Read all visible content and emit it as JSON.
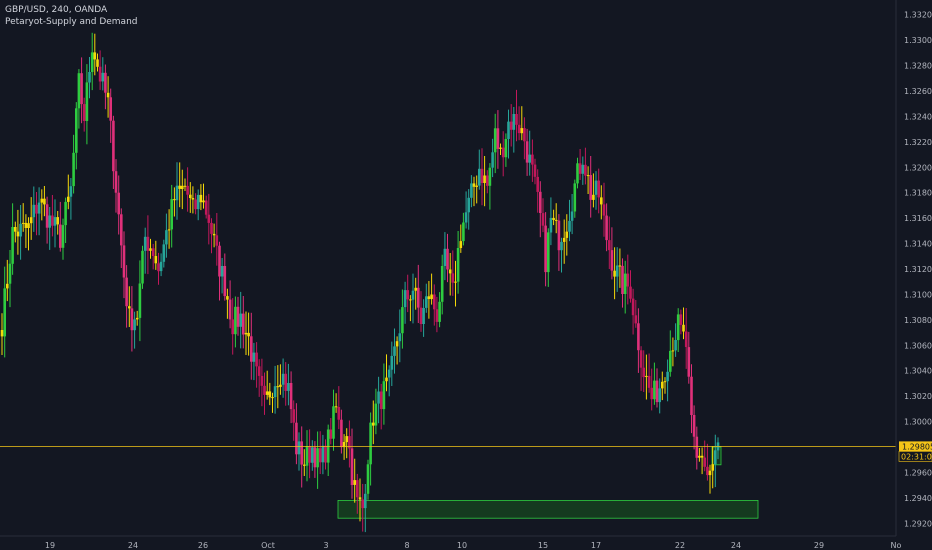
{
  "header": {
    "symbol_line": "GBP/USD, 240, OANDA",
    "indicator": "Petaryot-Supply and Demand"
  },
  "price_axis": {
    "ticks": [
      "1.33200",
      "1.33000",
      "1.32800",
      "1.32600",
      "1.32400",
      "1.32200",
      "1.32000",
      "1.31800",
      "1.31600",
      "1.31400",
      "1.31200",
      "1.31000",
      "1.30800",
      "1.30600",
      "1.30400",
      "1.30200",
      "1.30000",
      "1.29800",
      "1.29600",
      "1.29400",
      "1.29200"
    ],
    "last_price": "1.29805",
    "countdown": "02:31:06"
  },
  "time_axis": {
    "labels": [
      "19",
      "24",
      "26",
      "Oct",
      "3",
      "8",
      "10",
      "15",
      "17",
      "22",
      "24",
      "29",
      "No"
    ]
  },
  "colors": {
    "background": "#131722",
    "bull_strong": "#2ecc40",
    "bull_weak": "#26a69a",
    "bear_strong": "#e0307a",
    "bear_weak": "#c2185b",
    "doji": "#f5d90a",
    "price_line": "#f5c518",
    "demand_zone": "#1b7a1b",
    "demand_zone_border": "#2ecc40"
  },
  "chart_data": {
    "type": "candlestick",
    "y_range": [
      1.291,
      1.333
    ],
    "demand_zone": {
      "low": 1.2924,
      "high": 1.2938
    },
    "last_price": 1.29805,
    "keypoints": [
      [
        0,
        1.3078
      ],
      [
        4,
        1.3148
      ],
      [
        10,
        1.3152
      ],
      [
        14,
        1.3175
      ],
      [
        18,
        1.3158
      ],
      [
        22,
        1.3145
      ],
      [
        26,
        1.3182
      ],
      [
        29,
        1.3265
      ],
      [
        31,
        1.324
      ],
      [
        34,
        1.3298
      ],
      [
        37,
        1.3272
      ],
      [
        40,
        1.325
      ],
      [
        43,
        1.3185
      ],
      [
        46,
        1.3115
      ],
      [
        48,
        1.308
      ],
      [
        51,
        1.3085
      ],
      [
        54,
        1.3145
      ],
      [
        57,
        1.3135
      ],
      [
        59,
        1.312
      ],
      [
        62,
        1.3148
      ],
      [
        65,
        1.3175
      ],
      [
        69,
        1.3185
      ],
      [
        72,
        1.3165
      ],
      [
        75,
        1.3178
      ],
      [
        78,
        1.316
      ],
      [
        81,
        1.313
      ],
      [
        84,
        1.3108
      ],
      [
        87,
        1.3078
      ],
      [
        90,
        1.3082
      ],
      [
        93,
        1.3065
      ],
      [
        96,
        1.3035
      ],
      [
        99,
        1.3012
      ],
      [
        102,
        1.303
      ],
      [
        105,
        1.304
      ],
      [
        108,
        1.3025
      ],
      [
        111,
        1.298
      ],
      [
        114,
        1.2968
      ],
      [
        117,
        1.298
      ],
      [
        120,
        1.2965
      ],
      [
        123,
        1.2985
      ],
      [
        126,
        1.301
      ],
      [
        128,
        1.2985
      ],
      [
        130,
        1.2995
      ],
      [
        132,
        1.296
      ],
      [
        134,
        1.2936
      ],
      [
        136,
        1.2932
      ],
      [
        138,
        1.2975
      ],
      [
        140,
        1.3005
      ],
      [
        143,
        1.302
      ],
      [
        146,
        1.303
      ],
      [
        149,
        1.3065
      ],
      [
        152,
        1.3095
      ],
      [
        155,
        1.3105
      ],
      [
        158,
        1.308
      ],
      [
        161,
        1.31
      ],
      [
        164,
        1.3085
      ],
      [
        167,
        1.3125
      ],
      [
        170,
        1.31
      ],
      [
        173,
        1.315
      ],
      [
        176,
        1.317
      ],
      [
        180,
        1.32
      ],
      [
        183,
        1.3185
      ],
      [
        186,
        1.3225
      ],
      [
        188,
        1.321
      ],
      [
        191,
        1.3235
      ],
      [
        194,
        1.3238
      ],
      [
        197,
        1.3222
      ],
      [
        200,
        1.3195
      ],
      [
        203,
        1.316
      ],
      [
        205,
        1.3128
      ],
      [
        207,
        1.3158
      ],
      [
        210,
        1.3145
      ],
      [
        213,
        1.3158
      ],
      [
        216,
        1.3185
      ],
      [
        219,
        1.321
      ],
      [
        222,
        1.318
      ],
      [
        225,
        1.3178
      ],
      [
        228,
        1.3145
      ],
      [
        231,
        1.312
      ],
      [
        234,
        1.3108
      ],
      [
        237,
        1.3105
      ],
      [
        239,
        1.3075
      ],
      [
        242,
        1.304
      ],
      [
        245,
        1.3018
      ],
      [
        248,
        1.3028
      ],
      [
        251,
        1.305
      ],
      [
        253,
        1.3065
      ],
      [
        255,
        1.3075
      ],
      [
        258,
        1.306
      ],
      [
        260,
        1.2995
      ],
      [
        262,
        1.2968
      ],
      [
        264,
        1.2975
      ],
      [
        266,
        1.2958
      ],
      [
        268,
        1.2965
      ],
      [
        270,
        1.298
      ]
    ]
  }
}
